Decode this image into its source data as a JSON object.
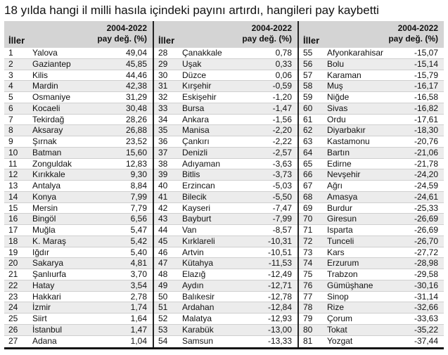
{
  "title": "18 yılda hangi il milli hasıla içindeki payını artırdı, hangileri pay kaybetti",
  "header": {
    "iller": "İller",
    "period": "2004-2022",
    "metric": "pay değ. (%)"
  },
  "columns": [
    [
      {
        "no": "1",
        "name": "Yalova",
        "val": "49,04"
      },
      {
        "no": "2",
        "name": "Gaziantep",
        "val": "45,85"
      },
      {
        "no": "3",
        "name": "Kilis",
        "val": "44,46"
      },
      {
        "no": "4",
        "name": "Mardin",
        "val": "42,38"
      },
      {
        "no": "5",
        "name": "Osmaniye",
        "val": "31,29"
      },
      {
        "no": "6",
        "name": "Kocaeli",
        "val": "30,48"
      },
      {
        "no": "7",
        "name": "Tekirdağ",
        "val": "28,26"
      },
      {
        "no": "8",
        "name": "Aksaray",
        "val": "26,88"
      },
      {
        "no": "9",
        "name": "Şırnak",
        "val": "23,52"
      },
      {
        "no": "10",
        "name": "Batman",
        "val": "15,60"
      },
      {
        "no": "11",
        "name": "Zonguldak",
        "val": "12,83"
      },
      {
        "no": "12",
        "name": "Kırıkkale",
        "val": "9,30"
      },
      {
        "no": "13",
        "name": "Antalya",
        "val": "8,84"
      },
      {
        "no": "14",
        "name": "Konya",
        "val": "7,99"
      },
      {
        "no": "15",
        "name": "Mersin",
        "val": "7,79"
      },
      {
        "no": "16",
        "name": "Bingöl",
        "val": "6,56"
      },
      {
        "no": "17",
        "name": "Muğla",
        "val": "5,47"
      },
      {
        "no": "18",
        "name": "K. Maraş",
        "val": "5,42"
      },
      {
        "no": "19",
        "name": "Iğdır",
        "val": "5,40"
      },
      {
        "no": "20",
        "name": "Sakarya",
        "val": "4,81"
      },
      {
        "no": "21",
        "name": "Şanlıurfa",
        "val": "3,70"
      },
      {
        "no": "22",
        "name": "Hatay",
        "val": "3,54"
      },
      {
        "no": "23",
        "name": "Hakkari",
        "val": "2,78"
      },
      {
        "no": "24",
        "name": "İzmir",
        "val": "1,74"
      },
      {
        "no": "25",
        "name": "Siirt",
        "val": "1,64"
      },
      {
        "no": "26",
        "name": "İstanbul",
        "val": "1,47"
      },
      {
        "no": "27",
        "name": "Adana",
        "val": "1,04"
      }
    ],
    [
      {
        "no": "28",
        "name": "Çanakkale",
        "val": "0,78"
      },
      {
        "no": "29",
        "name": "Uşak",
        "val": "0,33"
      },
      {
        "no": "30",
        "name": "Düzce",
        "val": "0,06"
      },
      {
        "no": "31",
        "name": "Kırşehir",
        "val": "-0,59"
      },
      {
        "no": "32",
        "name": "Eskişehir",
        "val": "-1,20"
      },
      {
        "no": "33",
        "name": "Bursa",
        "val": "-1,47"
      },
      {
        "no": "34",
        "name": "Ankara",
        "val": "-1,56"
      },
      {
        "no": "35",
        "name": "Manisa",
        "val": "-2,20"
      },
      {
        "no": "36",
        "name": "Çankırı",
        "val": "-2,22"
      },
      {
        "no": "37",
        "name": "Denizli",
        "val": "-2,57"
      },
      {
        "no": "38",
        "name": "Adıyaman",
        "val": "-3,63"
      },
      {
        "no": "39",
        "name": "Bitlis",
        "val": "-3,73"
      },
      {
        "no": "40",
        "name": "Erzincan",
        "val": "-5,03"
      },
      {
        "no": "41",
        "name": "Bilecik",
        "val": "-5,50"
      },
      {
        "no": "42",
        "name": "Kayseri",
        "val": "-7,47"
      },
      {
        "no": "43",
        "name": "Bayburt",
        "val": "-7,99"
      },
      {
        "no": "44",
        "name": "Van",
        "val": "-8,57"
      },
      {
        "no": "45",
        "name": "Kırklareli",
        "val": "-10,31"
      },
      {
        "no": "46",
        "name": "Artvin",
        "val": "-10,51"
      },
      {
        "no": "47",
        "name": "Kütahya",
        "val": "-11,53"
      },
      {
        "no": "48",
        "name": "Elazığ",
        "val": "-12,49"
      },
      {
        "no": "49",
        "name": "Aydın",
        "val": "-12,71"
      },
      {
        "no": "50",
        "name": "Balıkesir",
        "val": "-12,78"
      },
      {
        "no": "51",
        "name": "Ardahan",
        "val": "-12,84"
      },
      {
        "no": "52",
        "name": "Malatya",
        "val": "-12,93"
      },
      {
        "no": "53",
        "name": "Karabük",
        "val": "-13,00"
      },
      {
        "no": "54",
        "name": "Samsun",
        "val": "-13,33"
      }
    ],
    [
      {
        "no": "55",
        "name": "Afyonkarahisar",
        "val": "-15,07"
      },
      {
        "no": "56",
        "name": "Bolu",
        "val": "-15,14"
      },
      {
        "no": "57",
        "name": "Karaman",
        "val": "-15,79"
      },
      {
        "no": "58",
        "name": "Muş",
        "val": "-16,17"
      },
      {
        "no": "59",
        "name": "Niğde",
        "val": "-16,58"
      },
      {
        "no": "60",
        "name": "Sivas",
        "val": "-16,82"
      },
      {
        "no": "61",
        "name": "Ordu",
        "val": "-17,61"
      },
      {
        "no": "62",
        "name": "Diyarbakır",
        "val": "-18,30"
      },
      {
        "no": "63",
        "name": "Kastamonu",
        "val": "-20,76"
      },
      {
        "no": "64",
        "name": "Bartın",
        "val": "-21,06"
      },
      {
        "no": "65",
        "name": "Edirne",
        "val": "-21,78"
      },
      {
        "no": "66",
        "name": "Nevşehir",
        "val": "-24,20"
      },
      {
        "no": "67",
        "name": "Ağrı",
        "val": "-24,59"
      },
      {
        "no": "68",
        "name": "Amasya",
        "val": "-24,61"
      },
      {
        "no": "69",
        "name": "Burdur",
        "val": "-25,33"
      },
      {
        "no": "70",
        "name": "Giresun",
        "val": "-26,69"
      },
      {
        "no": "71",
        "name": "Isparta",
        "val": "-26,69"
      },
      {
        "no": "72",
        "name": "Tunceli",
        "val": "-26,70"
      },
      {
        "no": "73",
        "name": "Kars",
        "val": "-27,72"
      },
      {
        "no": "74",
        "name": "Erzurum",
        "val": "-28,98"
      },
      {
        "no": "75",
        "name": "Trabzon",
        "val": "-29,58"
      },
      {
        "no": "76",
        "name": "Gümüşhane",
        "val": "-30,16"
      },
      {
        "no": "77",
        "name": "Sinop",
        "val": "-31,14"
      },
      {
        "no": "78",
        "name": "Rize",
        "val": "-32,66"
      },
      {
        "no": "79",
        "name": "Çorum",
        "val": "-33,63"
      },
      {
        "no": "80",
        "name": "Tokat",
        "val": "-35,22"
      },
      {
        "no": "81",
        "name": "Yozgat",
        "val": "-37,44"
      }
    ]
  ]
}
